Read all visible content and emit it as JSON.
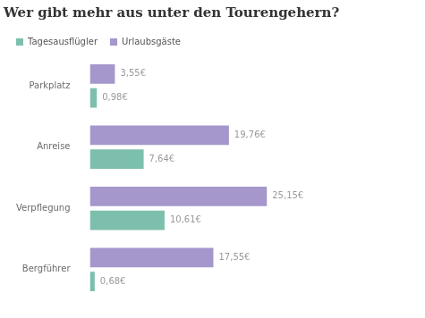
{
  "chart_data": {
    "type": "bar",
    "title": "Wer gibt mehr aus unter den Tourengehern?",
    "orientation": "horizontal",
    "categories": [
      "Parkplatz",
      "Anreise",
      "Verpflegung",
      "Bergführer"
    ],
    "series": [
      {
        "name": "Tagesausflügler",
        "color": "#7dbfad",
        "values": [
          0.98,
          7.64,
          10.61,
          0.68
        ],
        "value_labels": [
          "0,98€",
          "7,64€",
          "10,61€",
          "0,68€"
        ]
      },
      {
        "name": "Urlaubsgäste",
        "color": "#a596cc",
        "values": [
          3.55,
          19.76,
          25.15,
          17.55
        ],
        "value_labels": [
          "3,55€",
          "19,76€",
          "25,15€",
          "17,55€"
        ]
      }
    ],
    "xlim": [
      0,
      40
    ],
    "data_labels": true,
    "tick_labels": "y",
    "grid": false,
    "legend": "top-left"
  }
}
